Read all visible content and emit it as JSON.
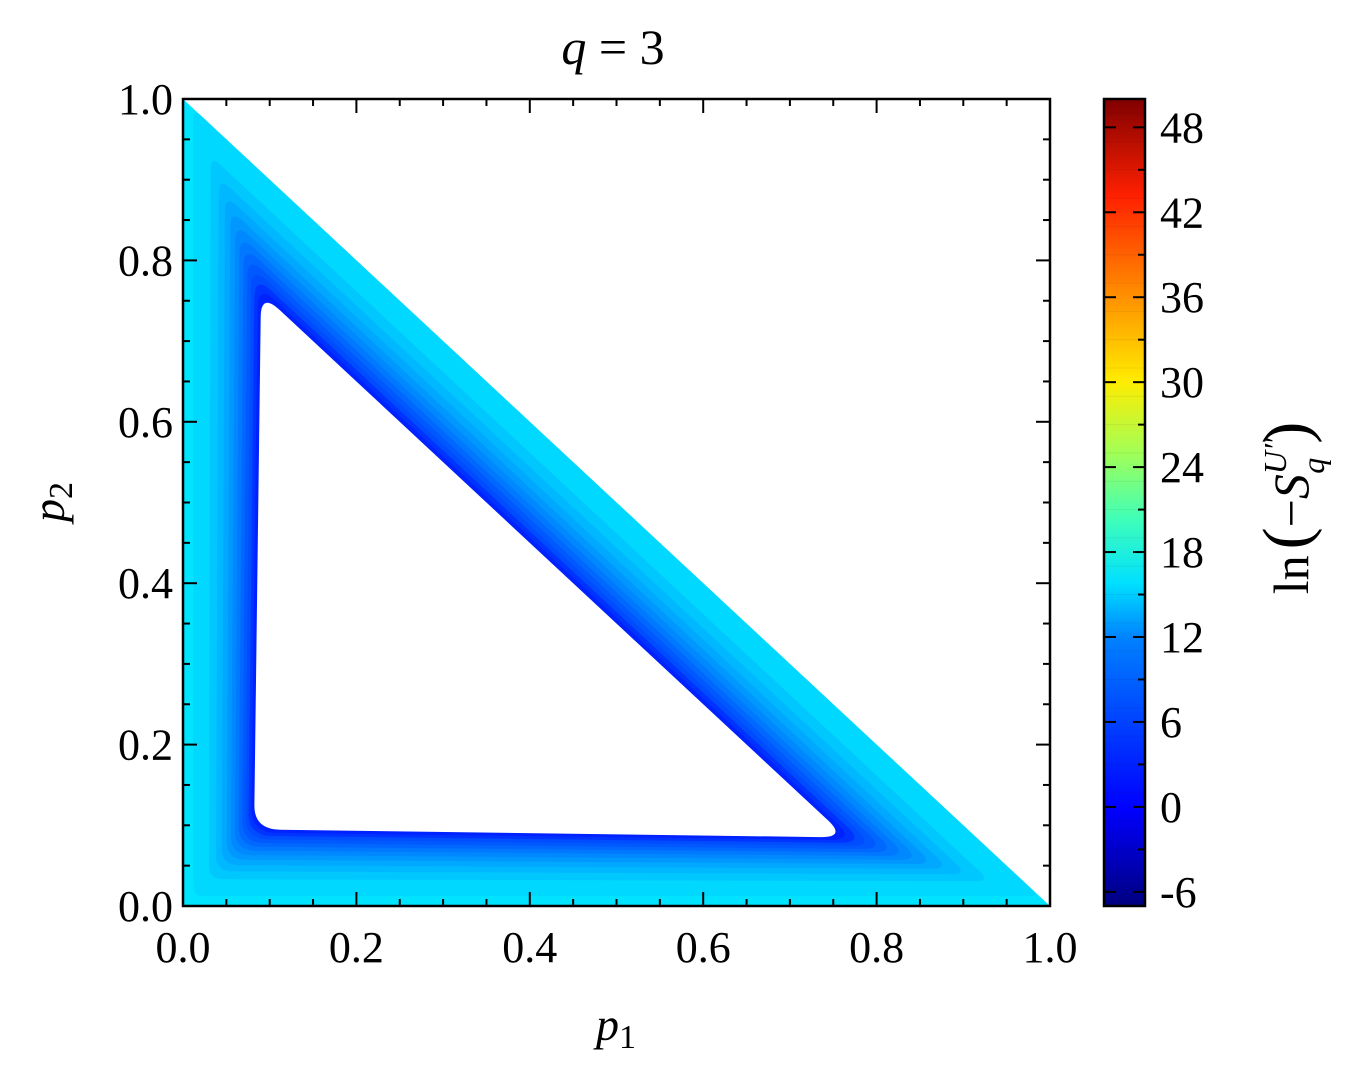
{
  "chart_data": {
    "type": "heatmap",
    "title": {
      "var": "q",
      "eq": " = ",
      "val": "3"
    },
    "xlabel": {
      "var": "p",
      "sub": "1"
    },
    "ylabel": {
      "var": "p",
      "sub": "2"
    },
    "colorbar_label": {
      "prefix": "ln",
      "open": "(",
      "minus": "−",
      "var": "S",
      "sub": "q",
      "sup": "U″",
      "close": ")"
    },
    "xlim": [
      0.0,
      1.0
    ],
    "ylim": [
      0.0,
      1.0
    ],
    "xticks": [
      "0.0",
      "0.2",
      "0.4",
      "0.6",
      "0.8",
      "1.0"
    ],
    "yticks": [
      "0.0",
      "0.2",
      "0.4",
      "0.6",
      "0.8",
      "1.0"
    ],
    "colorbar_range": [
      -7,
      50
    ],
    "colorbar_ticks": [
      "-6",
      "0",
      "6",
      "12",
      "18",
      "24",
      "30",
      "36",
      "42",
      "48"
    ],
    "colormap": "jet",
    "q": 3,
    "domain": "p1 + p2 <= 1",
    "white_region": "central area with values below the lowest shown level (values around -1 near its boundary)",
    "levels": [
      {
        "value": -1,
        "color": "#0022ff"
      },
      {
        "value": 0,
        "color": "#0033ff"
      },
      {
        "value": 1,
        "color": "#004cff"
      },
      {
        "value": 2,
        "color": "#0058ff"
      },
      {
        "value": 3,
        "color": "#0068ff"
      },
      {
        "value": 4,
        "color": "#0078ff"
      },
      {
        "value": 5,
        "color": "#0088ff"
      },
      {
        "value": 6,
        "color": "#0098ff"
      },
      {
        "value": 7,
        "color": "#00a8ff"
      },
      {
        "value": 8,
        "color": "#00b8ff"
      },
      {
        "value": 9,
        "color": "#00c8ff"
      },
      {
        "value": 10,
        "color": "#00d8ff"
      }
    ]
  }
}
